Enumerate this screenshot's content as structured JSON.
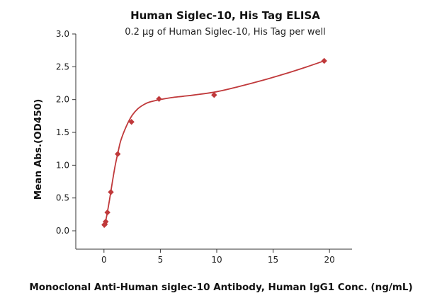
{
  "chart_data": {
    "type": "scatter",
    "title": "Human Siglec-10, His Tag ELISA",
    "subtitle": "0.2 µg of Human Siglec-10, His Tag per well",
    "xlabel": "Monoclonal Anti-Human siglec-10 Antibody, Human IgG1 Conc. (ng/mL)",
    "ylabel": "Mean Abs.(OD450)",
    "xlim": [
      -2.5,
      22
    ],
    "ylim": [
      -0.28,
      3.0
    ],
    "xticks": [
      0,
      5,
      10,
      15,
      20
    ],
    "xtick_labels": [
      "0",
      "5",
      "10",
      "15",
      "20"
    ],
    "yticks": [
      0.0,
      0.5,
      1.0,
      1.5,
      2.0,
      2.5,
      3.0
    ],
    "ytick_labels": [
      "0.0",
      "0.5",
      "1.0",
      "1.5",
      "2.0",
      "2.5",
      "3.0"
    ],
    "grid": false,
    "marker": "diamond",
    "color": "#c0393b",
    "series": [
      {
        "x": [
          0.038,
          0.076,
          0.153,
          0.305,
          0.61,
          1.22,
          2.44,
          4.88,
          9.77,
          19.53
        ],
        "y": [
          0.09,
          0.1,
          0.14,
          0.28,
          0.59,
          1.17,
          1.66,
          2.01,
          2.07,
          2.59
        ]
      }
    ],
    "fit_curve": {
      "x": [
        0,
        0.15,
        0.3,
        0.5,
        0.75,
        1.0,
        1.25,
        1.5,
        2.0,
        2.5,
        3.0,
        3.5,
        4.0,
        5.0,
        6.0,
        7.0,
        8.0,
        10.0,
        12.0,
        14.0,
        16.0,
        18.0,
        19.53
      ],
      "y": [
        0.05,
        0.15,
        0.28,
        0.48,
        0.75,
        1.0,
        1.2,
        1.38,
        1.6,
        1.76,
        1.86,
        1.92,
        1.96,
        2.0,
        2.03,
        2.05,
        2.07,
        2.12,
        2.2,
        2.29,
        2.39,
        2.5,
        2.59
      ]
    }
  }
}
